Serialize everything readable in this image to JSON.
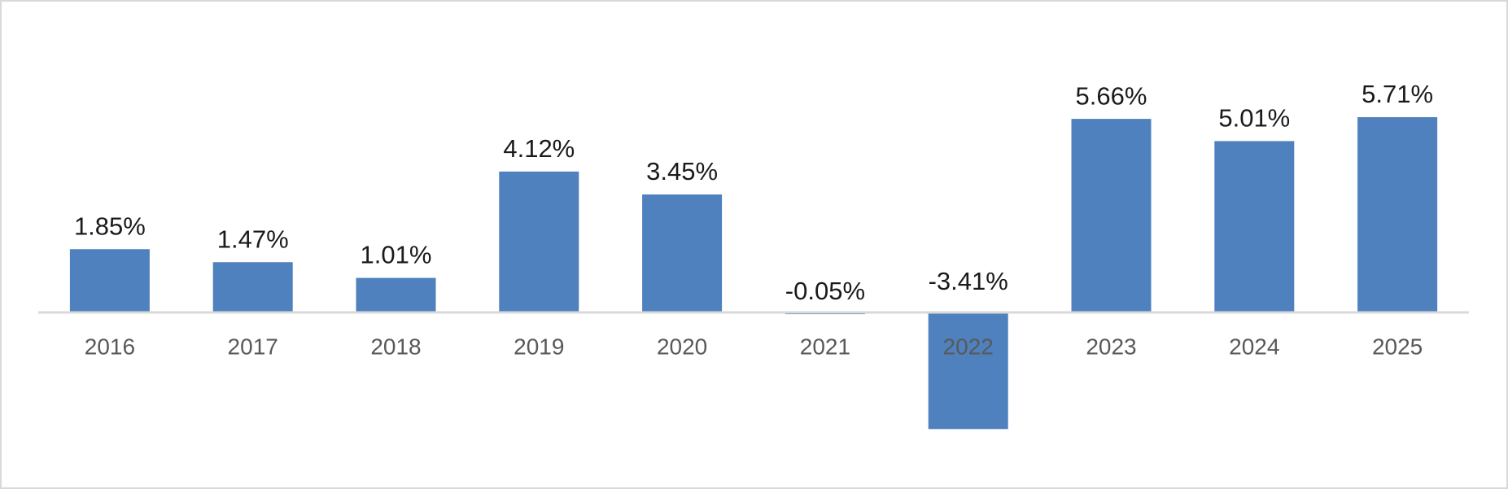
{
  "chart_data": {
    "type": "bar",
    "categories": [
      "2016",
      "2017",
      "2018",
      "2019",
      "2020",
      "2021",
      "2022",
      "2023",
      "2024",
      "2025"
    ],
    "values": [
      1.85,
      1.47,
      1.01,
      4.12,
      3.45,
      -0.05,
      -3.41,
      5.66,
      5.01,
      5.71
    ],
    "value_labels": [
      "1.85%",
      "1.47%",
      "1.01%",
      "4.12%",
      "3.45%",
      "-0.05%",
      "-3.41%",
      "5.66%",
      "5.01%",
      "5.71%"
    ],
    "color": "#4e81bd"
  }
}
